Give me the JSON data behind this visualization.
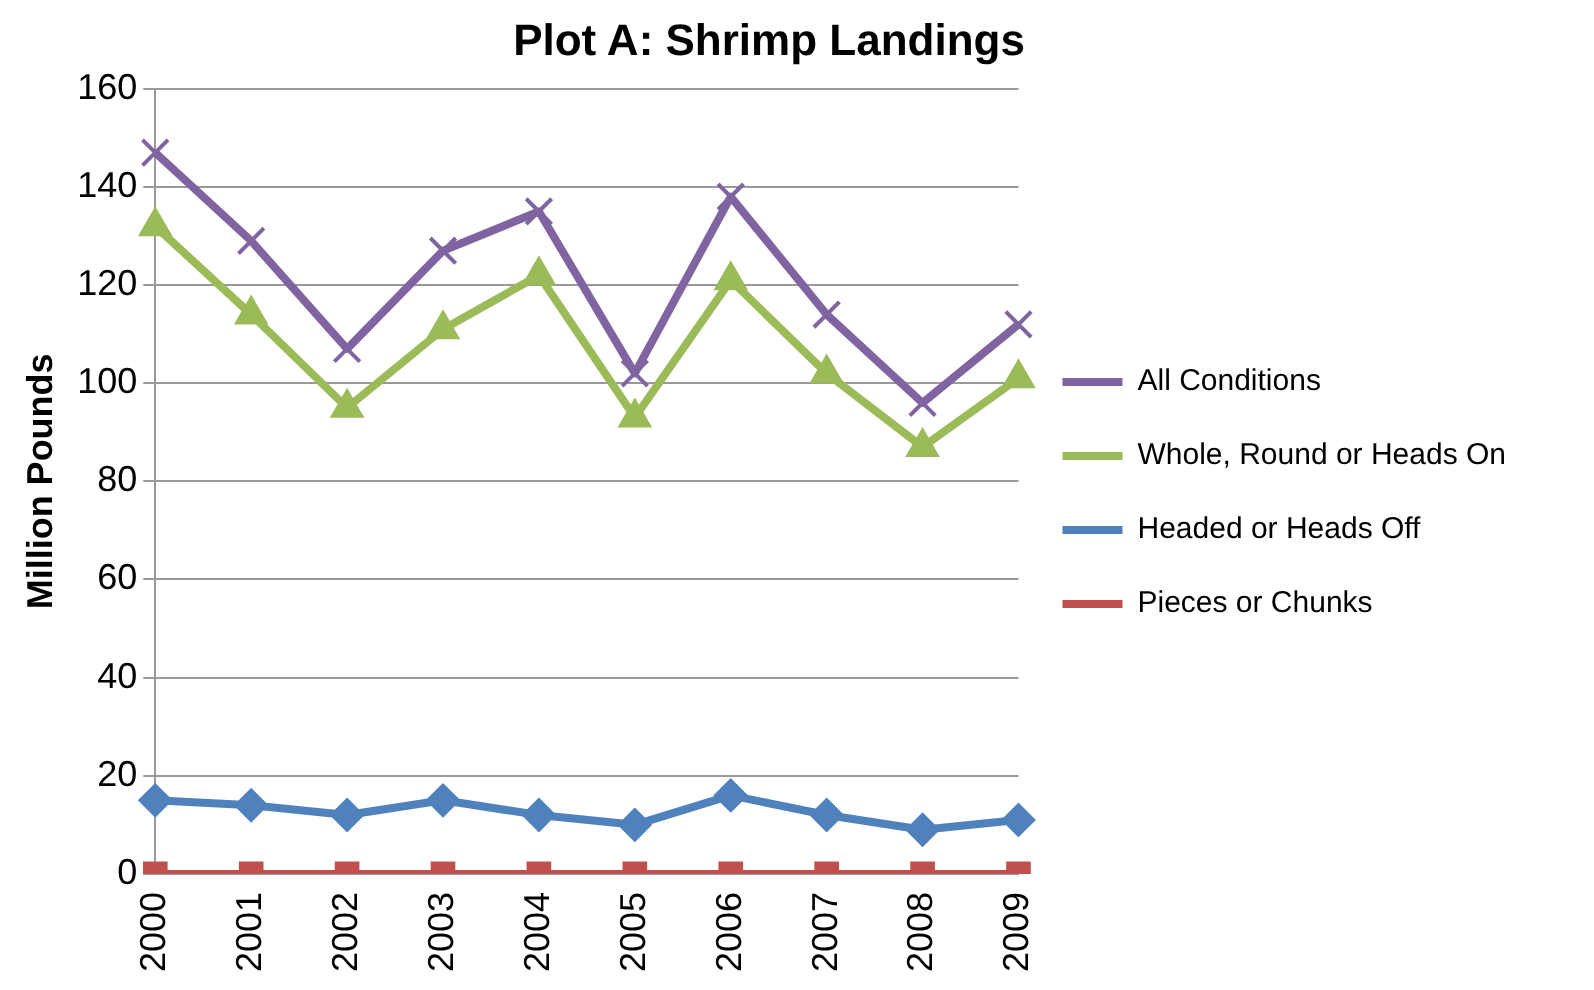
{
  "chart_data": {
    "type": "line",
    "title": "Plot A: Shrimp Landings",
    "ylabel": "Million Pounds",
    "categories": [
      "2000",
      "2001",
      "2002",
      "2003",
      "2004",
      "2005",
      "2006",
      "2007",
      "2008",
      "2009"
    ],
    "series": [
      {
        "name": "All Conditions",
        "color": "#8064a2",
        "marker": "cross",
        "values": [
          147,
          129,
          107,
          127,
          135,
          102,
          138,
          114,
          96,
          112
        ]
      },
      {
        "name": "Whole, Round or Heads On",
        "color": "#9bbb59",
        "marker": "triangle",
        "values": [
          132,
          114,
          95,
          111,
          122,
          93,
          121,
          102,
          87,
          101
        ]
      },
      {
        "name": "Headed or Heads Off",
        "color": "#4f81bd",
        "marker": "diamond",
        "values": [
          15,
          14,
          12,
          15,
          12,
          10,
          16,
          12,
          9,
          11
        ]
      },
      {
        "name": "Pieces or Chunks",
        "color": "#c0504d",
        "marker": "square",
        "values": [
          0,
          0,
          0,
          0,
          0,
          0,
          0,
          0,
          0,
          0
        ]
      }
    ],
    "ylim": [
      0,
      160
    ],
    "yticks": [
      0,
      20,
      40,
      60,
      80,
      100,
      120,
      140,
      160
    ],
    "grid": "y",
    "legend": "right",
    "line_style": "solid"
  }
}
